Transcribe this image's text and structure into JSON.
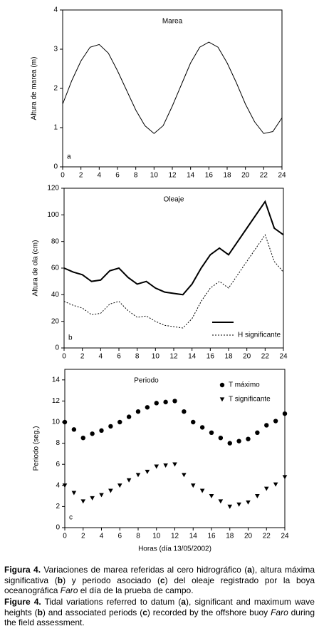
{
  "chart_data": [
    {
      "type": "line",
      "title": "Marea",
      "panel": "a",
      "ylabel": "Altura de marea (m)",
      "x": [
        0,
        1,
        2,
        3,
        4,
        5,
        6,
        7,
        8,
        9,
        10,
        11,
        12,
        13,
        14,
        15,
        16,
        17,
        18,
        19,
        20,
        21,
        22,
        23,
        24
      ],
      "series": [
        {
          "color": "#000",
          "dash": "solid",
          "values": [
            1.6,
            2.2,
            2.7,
            3.05,
            3.12,
            2.9,
            2.45,
            1.95,
            1.45,
            1.05,
            0.85,
            1.05,
            1.55,
            2.1,
            2.65,
            3.05,
            3.18,
            3.05,
            2.65,
            2.15,
            1.6,
            1.15,
            0.85,
            0.9,
            1.25
          ]
        }
      ],
      "xlim": [
        0,
        24
      ],
      "xticks": [
        0,
        2,
        4,
        6,
        8,
        10,
        12,
        14,
        16,
        18,
        20,
        22,
        24
      ],
      "ylim": [
        0,
        4
      ],
      "yticks": [
        0,
        1,
        2,
        3,
        4
      ]
    },
    {
      "type": "line",
      "title": "Oleaje",
      "panel": "b",
      "ylabel": "Altura de ola (cm)",
      "x": [
        0,
        1,
        2,
        3,
        4,
        5,
        6,
        7,
        8,
        9,
        10,
        11,
        12,
        13,
        14,
        15,
        16,
        17,
        18,
        19,
        20,
        21,
        22,
        23,
        24
      ],
      "series": [
        {
          "color": "#000",
          "dash": "solid",
          "values": [
            60,
            57,
            55,
            50,
            51,
            58,
            60,
            53,
            48,
            50,
            45,
            42,
            41,
            40,
            48,
            60,
            70,
            75,
            70,
            80,
            90,
            100,
            110,
            90,
            85
          ]
        },
        {
          "name": "H significante",
          "color": "#000",
          "dash": "dotted",
          "values": [
            35,
            32,
            30,
            25,
            26,
            33,
            35,
            28,
            23,
            24,
            20,
            17,
            16,
            15,
            22,
            35,
            45,
            50,
            45,
            55,
            65,
            75,
            85,
            65,
            57
          ]
        }
      ],
      "xlim": [
        0,
        24
      ],
      "xticks": [
        0,
        2,
        4,
        6,
        8,
        10,
        12,
        14,
        16,
        18,
        20,
        22,
        24
      ],
      "ylim": [
        0,
        120
      ],
      "yticks": [
        0,
        20,
        40,
        60,
        80,
        100,
        120
      ],
      "legend": "lower right"
    },
    {
      "type": "scatter",
      "title": "Periodo",
      "panel": "c",
      "ylabel": "Periodo (seg.)",
      "xlabel": "Horas (día 13/05/2002)",
      "x": [
        0,
        1,
        2,
        3,
        4,
        5,
        6,
        7,
        8,
        9,
        10,
        11,
        12,
        13,
        14,
        15,
        16,
        17,
        18,
        19,
        20,
        21,
        22,
        23,
        24
      ],
      "series": [
        {
          "name": "T máximo",
          "color": "#000",
          "marker": "circle",
          "values": [
            10,
            9.3,
            8.5,
            8.9,
            9.2,
            9.6,
            10,
            10.5,
            11,
            11.4,
            11.8,
            11.9,
            12,
            11,
            10,
            9.5,
            9,
            8.5,
            8,
            8.2,
            8.4,
            9,
            9.7,
            10.1,
            10.8
          ]
        },
        {
          "name": "T significante",
          "color": "#000",
          "marker": "triangle",
          "values": [
            4,
            3.3,
            2.5,
            2.8,
            3.1,
            3.5,
            4,
            4.5,
            5,
            5.3,
            5.8,
            5.9,
            6,
            5,
            4,
            3.5,
            3,
            2.5,
            2,
            2.2,
            2.4,
            3,
            3.7,
            4.1,
            4.8
          ]
        }
      ],
      "xlim": [
        0,
        24
      ],
      "xticks": [
        0,
        2,
        4,
        6,
        8,
        10,
        12,
        14,
        16,
        18,
        20,
        22,
        24
      ],
      "ylim": [
        0,
        15
      ],
      "yticks": [
        0,
        2,
        4,
        6,
        8,
        10,
        12,
        14
      ],
      "legend": "upper right"
    }
  ],
  "caption_es": [
    "Figura 4.",
    " Variaciones de marea referidas al cero hidrográfico (",
    "a",
    "), altura máxima significativa (",
    "b",
    ") y periodo asociado (",
    "c",
    ") del oleaje registrado por la boya oceanográfica ",
    "Faro",
    " el día de la prueba de campo."
  ],
  "caption_en": [
    "Figure 4.",
    " Tidal variations referred to datum (",
    "a",
    "), significant and maximum wave heights (",
    "b",
    ") and associated periods (",
    "c",
    ") recorded by the offshore buoy ",
    "Faro",
    " during the field assessment."
  ]
}
